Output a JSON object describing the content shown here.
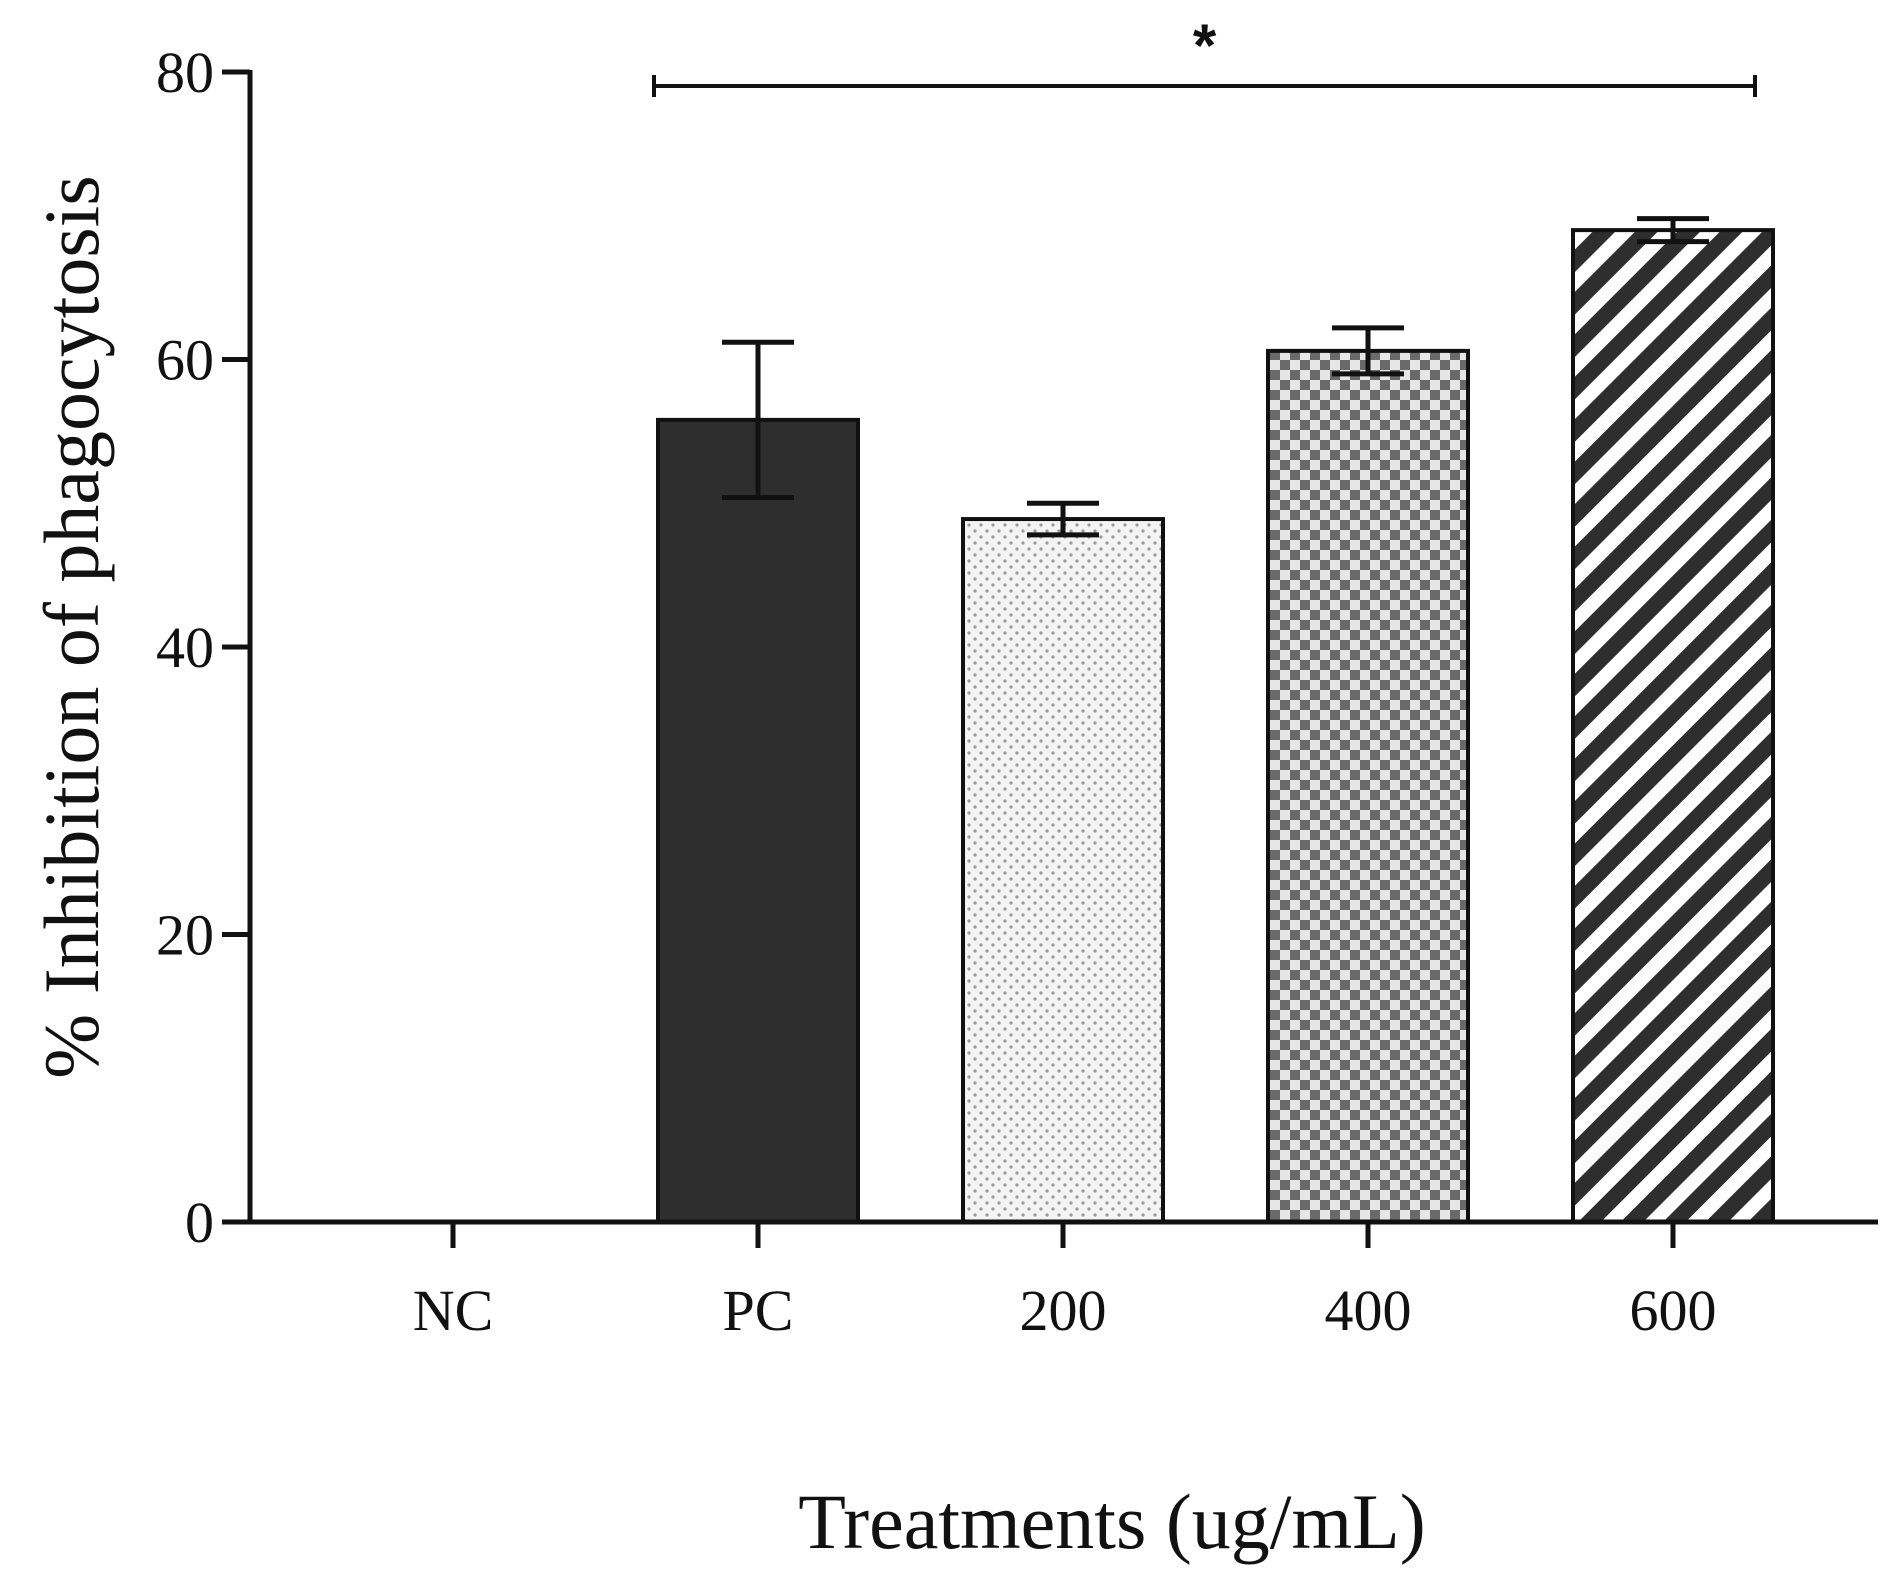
{
  "chart_data": {
    "type": "bar",
    "title": "",
    "xlabel": "Treatments (ug/mL)",
    "ylabel": "% Inhibition of phagocytosis",
    "ylim": [
      0,
      80
    ],
    "yticks": [
      0,
      20,
      40,
      60,
      80
    ],
    "grid": false,
    "legend": "none",
    "categories": [
      "NC",
      "PC",
      "200",
      "400",
      "600"
    ],
    "values": [
      0,
      55.8,
      48.9,
      60.6,
      69.0
    ],
    "errors": [
      0,
      5.4,
      1.1,
      1.6,
      0.8
    ],
    "patterns": [
      "none",
      "solid-dark",
      "dotted",
      "checker",
      "diagonal-stripes"
    ],
    "colors": [
      "#ffffff",
      "#2e2e2e",
      "#f2f2f2",
      "#6e6e6e",
      "#2e2e2e"
    ],
    "significance": {
      "from": "PC",
      "to": "600",
      "label": "*"
    }
  }
}
